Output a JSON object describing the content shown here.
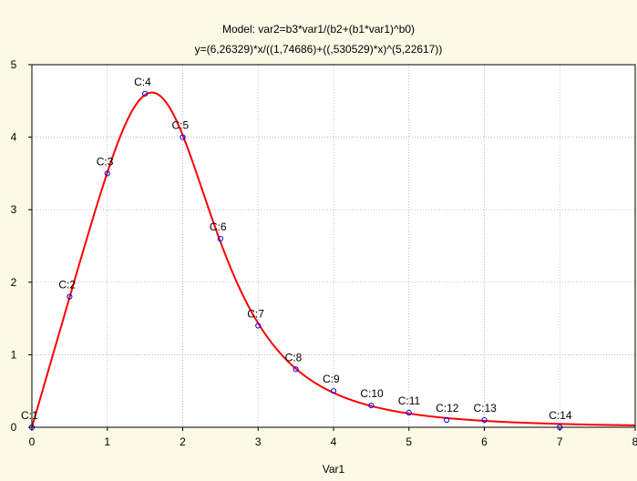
{
  "chart_data": {
    "type": "scatter",
    "title": "Model: var2=b3*var1/(b2+(b1*var1)^b0)",
    "subtitle": "y=(6,26329)*x/((1,74686)+((,530529)*x)^(5,22617))",
    "xlabel": "Var1",
    "ylabel": "",
    "xlim": [
      0,
      8
    ],
    "ylim": [
      0,
      5
    ],
    "x_ticks": [
      "0",
      "1",
      "2",
      "3",
      "4",
      "5",
      "6",
      "7",
      "8"
    ],
    "y_ticks": [
      "0",
      "1",
      "2",
      "3",
      "4",
      "5"
    ],
    "grid": true,
    "series": [
      {
        "type": "scatter",
        "points": [
          {
            "label": "C:1",
            "x": 0,
            "y": 0
          },
          {
            "label": "C:2",
            "x": 0.5,
            "y": 1.8
          },
          {
            "label": "C:3",
            "x": 1,
            "y": 3.5
          },
          {
            "label": "C:4",
            "x": 1.5,
            "y": 4.6
          },
          {
            "label": "C:5",
            "x": 2,
            "y": 4.0
          },
          {
            "label": "C:6",
            "x": 2.5,
            "y": 2.6
          },
          {
            "label": "C:7",
            "x": 3,
            "y": 1.4
          },
          {
            "label": "C:8",
            "x": 3.5,
            "y": 0.8
          },
          {
            "label": "C:9",
            "x": 4,
            "y": 0.5
          },
          {
            "label": "C:10",
            "x": 4.5,
            "y": 0.3
          },
          {
            "label": "C:11",
            "x": 5,
            "y": 0.2
          },
          {
            "label": "C:12",
            "x": 5.5,
            "y": 0.1
          },
          {
            "label": "C:13",
            "x": 6,
            "y": 0.1
          },
          {
            "label": "C:14",
            "x": 7,
            "y": 0
          }
        ]
      },
      {
        "type": "line",
        "model": {
          "b3": 6.26329,
          "b2": 1.74686,
          "b1": 0.530529,
          "b0": 5.22617
        }
      }
    ],
    "colors": {
      "background": "#fdf9e6",
      "plot_area": "#ffffff",
      "fit_line": "#ff0000",
      "points": "#0000ff",
      "grid": "#a0a0a0"
    }
  }
}
